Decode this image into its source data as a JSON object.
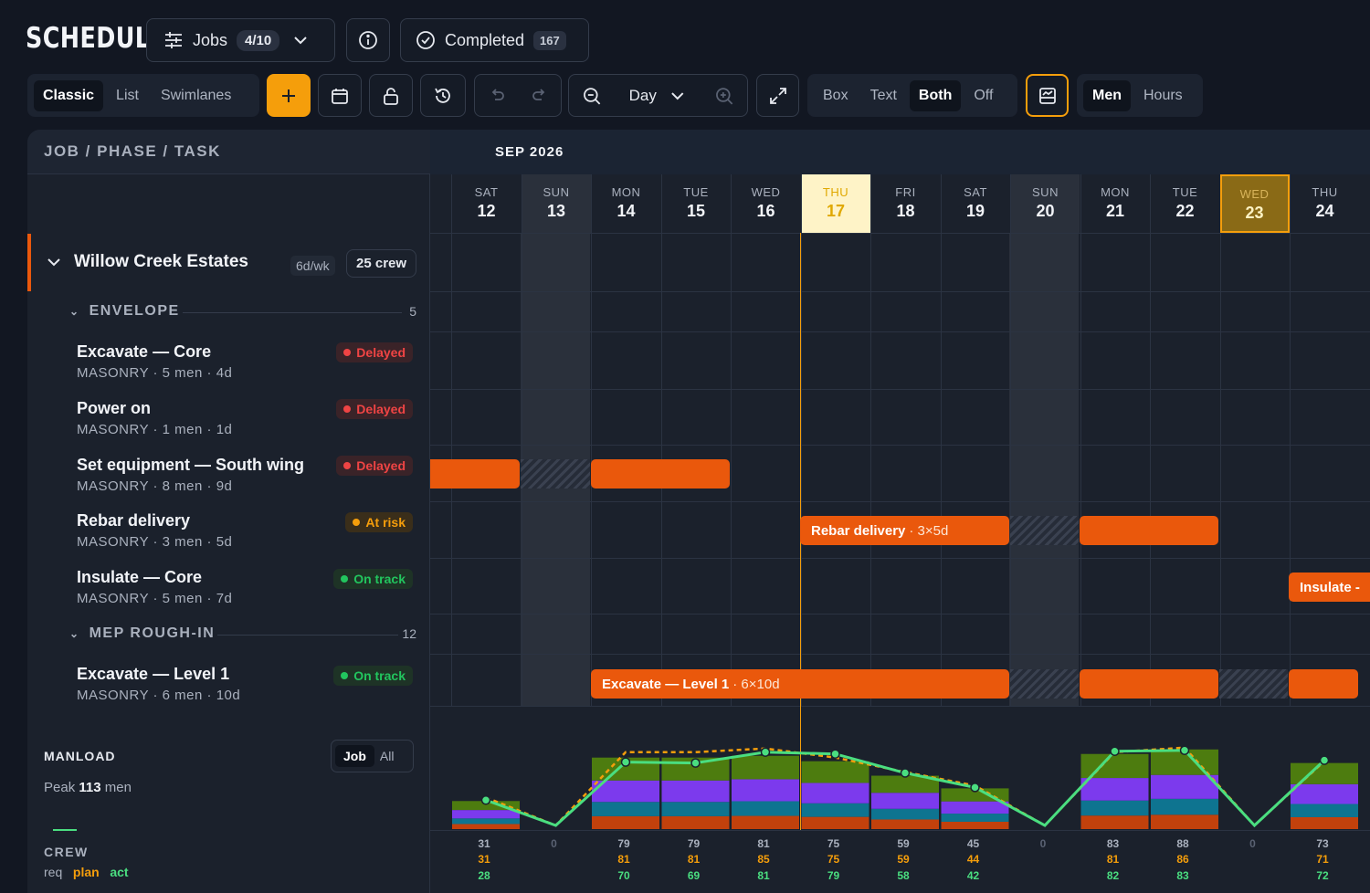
{
  "app": {
    "title": "SCHEDULE"
  },
  "toolbar": {
    "jobs_label": "Jobs",
    "jobs_count": "4/10",
    "completed_label": "Completed",
    "completed_count": "167",
    "views": [
      "Classic",
      "List",
      "Swimlanes"
    ],
    "zoom_level": "Day",
    "label_modes": [
      "Box",
      "Text",
      "Both",
      "Off"
    ],
    "units": [
      "Men",
      "Hours"
    ]
  },
  "grid": {
    "header_left": "JOB / PHASE / TASK",
    "month": "SEP 2026",
    "days": [
      {
        "name": "SAT",
        "num": "12"
      },
      {
        "name": "SUN",
        "num": "13"
      },
      {
        "name": "MON",
        "num": "14"
      },
      {
        "name": "TUE",
        "num": "15"
      },
      {
        "name": "WED",
        "num": "16"
      },
      {
        "name": "THU",
        "num": "17"
      },
      {
        "name": "FRI",
        "num": "18"
      },
      {
        "name": "SAT",
        "num": "19"
      },
      {
        "name": "SUN",
        "num": "20"
      },
      {
        "name": "MON",
        "num": "21"
      },
      {
        "name": "TUE",
        "num": "22"
      },
      {
        "name": "WED",
        "num": "23"
      },
      {
        "name": "THU",
        "num": "24"
      }
    ]
  },
  "job": {
    "name": "Willow Creek Estates",
    "schedule": "6d/wk",
    "crew": "25 crew"
  },
  "phases": [
    {
      "name": "ENVELOPE",
      "count": "5"
    },
    {
      "name": "MEP ROUGH-IN",
      "count": "12"
    }
  ],
  "tasks": [
    {
      "name": "Excavate — Core",
      "trade": "MASONRY",
      "men": "5 men",
      "dur": "4d",
      "status": "Delayed"
    },
    {
      "name": "Power on",
      "trade": "MASONRY",
      "men": "1 men",
      "dur": "1d",
      "status": "Delayed"
    },
    {
      "name": "Set equipment — South wing",
      "trade": "MASONRY",
      "men": "8 men",
      "dur": "9d",
      "status": "Delayed"
    },
    {
      "name": "Rebar delivery",
      "trade": "MASONRY",
      "men": "3 men",
      "dur": "5d",
      "status": "At risk"
    },
    {
      "name": "Insulate — Core",
      "trade": "MASONRY",
      "men": "5 men",
      "dur": "7d",
      "status": "On track"
    },
    {
      "name": "Excavate — Level 1",
      "trade": "MASONRY",
      "men": "6 men",
      "dur": "10d",
      "status": "On track"
    }
  ],
  "bars": {
    "rebar_label": "Rebar delivery",
    "rebar_sub": "· 3×5d",
    "insulate_label": "Insulate -",
    "excavate_label": "Excavate — Level 1",
    "excavate_sub": "· 6×10d"
  },
  "manload": {
    "title": "MANLOAD",
    "toggle": [
      "Job",
      "All"
    ],
    "peak_prefix": "Peak",
    "peak_value": "113",
    "peak_suffix": "men"
  },
  "crew": {
    "title": "CREW",
    "legend": [
      "req",
      "plan",
      "act"
    ],
    "req": [
      "31",
      "0",
      "79",
      "79",
      "81",
      "75",
      "59",
      "45",
      "0",
      "83",
      "88",
      "0",
      "73"
    ],
    "plan": [
      "31",
      "",
      "81",
      "81",
      "85",
      "75",
      "59",
      "44",
      "",
      "81",
      "86",
      "",
      "71"
    ],
    "act": [
      "28",
      "",
      "70",
      "69",
      "81",
      "79",
      "58",
      "42",
      "",
      "82",
      "83",
      "",
      "72"
    ]
  },
  "colors": {
    "accent": "#ea580c",
    "today": "#f59e0b",
    "green": "#4ade80"
  }
}
